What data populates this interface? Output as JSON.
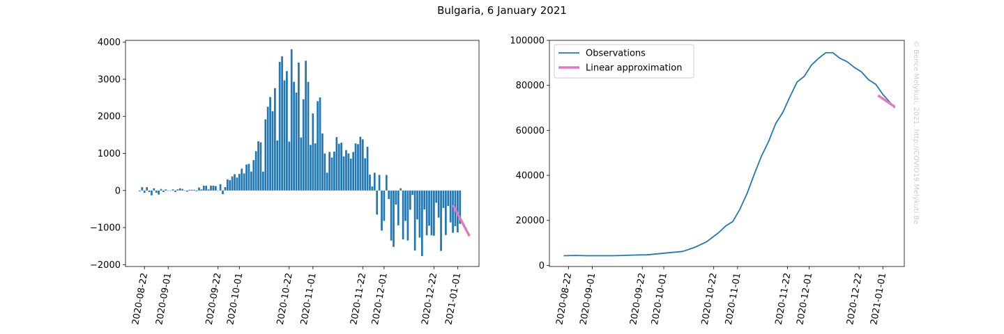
{
  "figure": {
    "title": "Bulgaria, 6 January 2021",
    "watermark": "© Bence Melykuti, 2021. http://COVID19.Melykuti.Be"
  },
  "colors": {
    "bars": "#1f77b4",
    "observations": "#1f77b4",
    "approximation": "#e377c2"
  },
  "chart_data": [
    {
      "type": "bar",
      "title": "",
      "xlabel": "",
      "ylabel": "",
      "x_ticks": [
        "2020-08-22",
        "2020-09-01",
        "2020-09-22",
        "2020-10-01",
        "2020-10-22",
        "2020-11-01",
        "2020-11-22",
        "2020-12-01",
        "2020-12-22",
        "2021-01-01"
      ],
      "y_ticks": [
        4000,
        3000,
        2000,
        1000,
        0,
        -1000,
        -2000
      ],
      "ylim": [
        -2050,
        4050
      ],
      "x_start": "2020-08-20",
      "values": [
        -20,
        90,
        -60,
        90,
        -40,
        -130,
        60,
        -60,
        -110,
        40,
        -40,
        30,
        0,
        0,
        30,
        -40,
        30,
        60,
        40,
        -10,
        -30,
        20,
        20,
        20,
        -20,
        80,
        30,
        130,
        130,
        30,
        130,
        130,
        120,
        0,
        170,
        -100,
        90,
        300,
        280,
        380,
        440,
        350,
        450,
        590,
        460,
        700,
        720,
        510,
        820,
        1060,
        1330,
        1300,
        510,
        1920,
        2260,
        2520,
        2140,
        2760,
        1350,
        3470,
        3620,
        2970,
        3220,
        1320,
        3810,
        2930,
        2640,
        3450,
        1430,
        2460,
        3500,
        2930,
        1230,
        2080,
        1270,
        2410,
        2510,
        1540,
        1000,
        480,
        1040,
        890,
        1050,
        1440,
        1260,
        1290,
        920,
        1090,
        1000,
        860,
        1040,
        1270,
        1250,
        1450,
        1380,
        870,
        1180,
        430,
        110,
        480,
        -650,
        420,
        -1080,
        -820,
        420,
        -230,
        -1350,
        -1520,
        -380,
        -940,
        60,
        -1320,
        -820,
        -1350,
        -520,
        -120,
        -1620,
        -780,
        -1270,
        -1770,
        -510,
        -1210,
        -950,
        -1210,
        -1220,
        -330,
        -730,
        -1630,
        -470,
        -1200,
        -420,
        -860,
        -1140,
        -960,
        -1130,
        -900
      ],
      "series": [
        {
          "name": "",
          "x": [
            "2020-12-30",
            "2021-01-06"
          ],
          "y": [
            -390,
            -1230
          ]
        }
      ]
    },
    {
      "type": "line",
      "title": "",
      "xlabel": "",
      "ylabel": "",
      "x_ticks": [
        "2020-08-22",
        "2020-09-01",
        "2020-09-22",
        "2020-10-01",
        "2020-10-22",
        "2020-11-01",
        "2020-11-22",
        "2020-12-01",
        "2020-12-22",
        "2021-01-01"
      ],
      "y_ticks": [
        100000,
        80000,
        60000,
        40000,
        20000,
        0
      ],
      "ylim": [
        -500,
        100000
      ],
      "legend": "top-left",
      "series": [
        {
          "name": "Observations",
          "x": [
            "2020-08-20",
            "2020-08-25",
            "2020-08-30",
            "2020-09-04",
            "2020-09-09",
            "2020-09-14",
            "2020-09-19",
            "2020-09-24",
            "2020-09-29",
            "2020-10-04",
            "2020-10-09",
            "2020-10-14",
            "2020-10-19",
            "2020-10-24",
            "2020-10-27",
            "2020-10-30",
            "2020-11-02",
            "2020-11-05",
            "2020-11-08",
            "2020-11-11",
            "2020-11-14",
            "2020-11-17",
            "2020-11-20",
            "2020-11-23",
            "2020-11-26",
            "2020-11-29",
            "2020-12-02",
            "2020-12-05",
            "2020-12-08",
            "2020-12-11",
            "2020-12-14",
            "2020-12-17",
            "2020-12-20",
            "2020-12-23",
            "2020-12-26",
            "2020-12-29",
            "2021-01-01",
            "2021-01-06"
          ],
          "y": [
            4300,
            4400,
            4300,
            4300,
            4300,
            4400,
            4600,
            4700,
            5200,
            5700,
            6200,
            8000,
            10500,
            14500,
            17500,
            19500,
            25000,
            32000,
            40500,
            48500,
            55000,
            63000,
            68000,
            75000,
            81500,
            84000,
            89000,
            92000,
            94500,
            94500,
            92000,
            90500,
            88000,
            86000,
            82500,
            80500,
            76000,
            70000
          ]
        },
        {
          "name": "Linear approximation",
          "x": [
            "2020-12-30",
            "2021-01-06"
          ],
          "y": [
            75500,
            70500
          ]
        }
      ]
    }
  ]
}
